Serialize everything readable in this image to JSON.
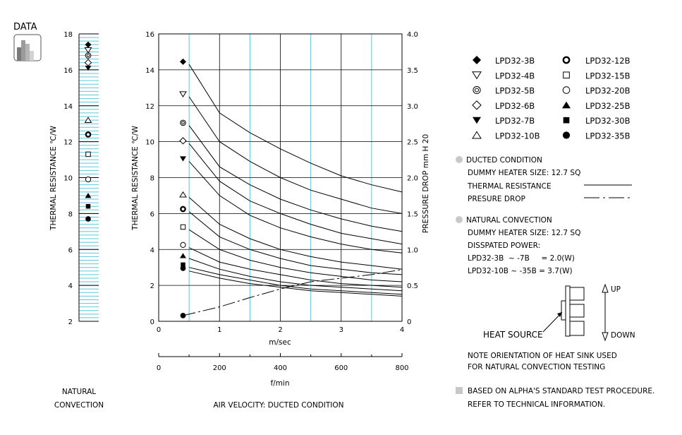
{
  "badge": {
    "label": "DATA",
    "icon": "bar-chart-icon"
  },
  "colors": {
    "grid": "#5bc8dc",
    "text": "#000000",
    "bullet": "#c8c8c8"
  },
  "natural": {
    "ylabel": "THERMAL  RESISTANCE   ℃/W",
    "ylim": [
      2,
      18
    ],
    "ticks": [
      "2",
      "4",
      "6",
      "8",
      "10",
      "12",
      "14",
      "16",
      "18"
    ],
    "caption_line1": "NATURAL",
    "caption_line2": "CONVECTION"
  },
  "chart_data": {
    "type": "line",
    "title": "",
    "xlabel": "m/sec",
    "xlabel2": "f/min",
    "ylabel": "THERMAL  RESISTANCE   ℃/W",
    "ylabel_right": "PRESSURE  DROP    mm H 20",
    "caption": "AIR VELOCITY:   DUCTED CONDITION",
    "xlim": [
      0,
      4
    ],
    "ylim": [
      0,
      16
    ],
    "ylim_right": [
      0,
      4.0
    ],
    "xticks": [
      "0",
      "1",
      "2",
      "3",
      "4"
    ],
    "x2ticks": [
      "0",
      "200",
      "400",
      "600",
      "800"
    ],
    "yticks": [
      "0",
      "2",
      "4",
      "6",
      "8",
      "10",
      "12",
      "14",
      "16"
    ],
    "yticks_right": [
      "0",
      "0.5",
      "1.0",
      "1.5",
      "2.0",
      "2.5",
      "3.0",
      "3.5",
      "4.0"
    ],
    "grid": true,
    "x": [
      0.5,
      1.0,
      1.5,
      2.0,
      2.5,
      3.0,
      3.5,
      4.0
    ],
    "series": [
      {
        "name": "LPD32-3B",
        "symbol": "diamond-filled",
        "natural": 17.4,
        "values": [
          14.3,
          11.6,
          10.5,
          9.6,
          8.8,
          8.1,
          7.6,
          7.2
        ]
      },
      {
        "name": "LPD32-4B",
        "symbol": "triangle-down-open",
        "natural": 17.1,
        "values": [
          12.5,
          10.0,
          8.9,
          8.0,
          7.3,
          6.8,
          6.3,
          6.0
        ]
      },
      {
        "name": "LPD32-5B",
        "symbol": "double-circle",
        "natural": 16.8,
        "values": [
          10.9,
          8.6,
          7.6,
          6.8,
          6.2,
          5.7,
          5.3,
          5.0
        ]
      },
      {
        "name": "LPD32-6B",
        "symbol": "diamond-open",
        "natural": 16.4,
        "values": [
          9.9,
          7.8,
          6.7,
          6.0,
          5.4,
          4.9,
          4.6,
          4.3
        ]
      },
      {
        "name": "LPD32-7B",
        "symbol": "triangle-down-filled",
        "natural": 16.1,
        "values": [
          8.9,
          7.0,
          5.9,
          5.2,
          4.7,
          4.3,
          4.0,
          3.8
        ]
      },
      {
        "name": "LPD32-10B",
        "symbol": "triangle-up-open",
        "natural": 13.2,
        "values": [
          6.9,
          5.4,
          4.6,
          4.0,
          3.6,
          3.3,
          3.1,
          2.9
        ]
      },
      {
        "name": "LPD32-12B",
        "symbol": "double-circle-bold",
        "natural": 12.4,
        "values": [
          6.1,
          4.7,
          4.0,
          3.5,
          3.1,
          2.9,
          2.7,
          2.6
        ]
      },
      {
        "name": "LPD32-15B",
        "symbol": "square-open",
        "natural": 11.3,
        "values": [
          5.1,
          4.0,
          3.4,
          3.0,
          2.7,
          2.5,
          2.3,
          2.2
        ]
      },
      {
        "name": "LPD32-20B",
        "symbol": "circle-open",
        "natural": 9.9,
        "values": [
          4.1,
          3.3,
          2.9,
          2.6,
          2.3,
          2.1,
          2.0,
          1.9
        ]
      },
      {
        "name": "LPD32-25B",
        "symbol": "triangle-up-filled",
        "natural": 9.0,
        "values": [
          3.5,
          2.9,
          2.5,
          2.2,
          2.0,
          1.9,
          1.8,
          1.7
        ]
      },
      {
        "name": "LPD32-30B",
        "symbol": "square-filled",
        "natural": 8.4,
        "values": [
          3.0,
          2.6,
          2.3,
          2.0,
          1.8,
          1.7,
          1.6,
          1.5
        ]
      },
      {
        "name": "LPD32-35B",
        "symbol": "circle-filled",
        "natural": 7.7,
        "values": [
          2.8,
          2.4,
          2.1,
          1.9,
          1.7,
          1.6,
          1.5,
          1.4
        ]
      }
    ],
    "pressure_drop": {
      "x": [
        0.4,
        1.0,
        1.5,
        2.0,
        2.5,
        3.0,
        3.5,
        4.0
      ],
      "values": [
        0.08,
        0.2,
        0.33,
        0.45,
        0.55,
        0.6,
        0.65,
        0.72
      ]
    }
  },
  "legend": {
    "col1": [
      "LPD32-3B",
      "LPD32-4B",
      "LPD32-5B",
      "LPD32-6B",
      "LPD32-7B",
      "LPD32-10B"
    ],
    "col2": [
      "LPD32-12B",
      "LPD32-15B",
      "LPD32-20B",
      "LPD32-25B",
      "LPD32-30B",
      "LPD32-35B"
    ]
  },
  "notes": {
    "ducted_title": "DUCTED CONDITION",
    "ducted_heater": "DUMMY HEATER SIZE: 12.7 SQ",
    "thermal_resistance": "THERMAL RESISTANCE",
    "pressure_drop": "PRESURE DROP",
    "natural_title": "NATURAL CONVECTION",
    "natural_heater": "DUMMY HEATER SIZE: 12.7 SQ",
    "dissipated": "DISSPATED POWER:",
    "power_line1": "LPD32-3B  ~ -7B     = 2.0(W)",
    "power_line2": "LPD32-10B ~ -35B = 3.7(W)",
    "up": "UP",
    "down": "DOWN",
    "heat_source": "HEAT SOURCE",
    "orientation_line1": "NOTE ORIENTATION OF HEAT SINK USED",
    "orientation_line2": "FOR NATURAL CONVECTION TESTING",
    "standard_line1": "BASED ON ALPHA'S STANDARD TEST PROCEDURE.",
    "standard_line2": "REFER TO TECHNICAL INFORMATION."
  }
}
